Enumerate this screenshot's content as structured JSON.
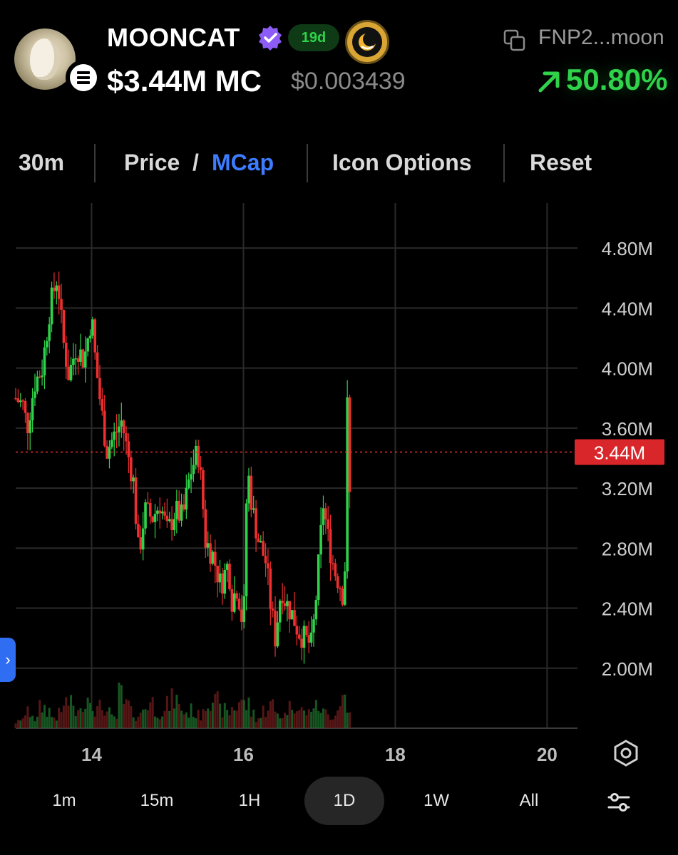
{
  "token": {
    "name": "MOONCAT",
    "age": "19d",
    "market_cap": "$3.44M MC",
    "price": "$0.003439",
    "address": "FNP2...moon",
    "change": "50.80%",
    "icons": {
      "verified": "verified-check-icon",
      "chain": "solana-icon",
      "badge": "moon-icon",
      "copy": "copy-icon",
      "change": "arrow-up-right-icon"
    }
  },
  "toolbar": {
    "interval": "30m",
    "price_label": "Price",
    "slash": "/",
    "mcap_label": "MCap",
    "icon_options": "Icon Options",
    "reset": "Reset"
  },
  "intervals": [
    {
      "label": "1m",
      "selected": false
    },
    {
      "label": "15m",
      "selected": false
    },
    {
      "label": "1H",
      "selected": false
    },
    {
      "label": "1D",
      "selected": true
    },
    {
      "label": "1W",
      "selected": false
    },
    {
      "label": "All",
      "selected": false
    }
  ],
  "chart_data": {
    "type": "candlestick",
    "x_ticks": [
      "14",
      "16",
      "18",
      "20"
    ],
    "y_ticks": [
      "2.00M",
      "2.40M",
      "2.80M",
      "3.20M",
      "3.60M",
      "4.00M",
      "4.40M",
      "4.80M"
    ],
    "current_label": "3.44M",
    "current_value": 3.44,
    "x_range": [
      13.0,
      20.4
    ],
    "y_range": [
      1.6,
      5.1
    ],
    "grid": true,
    "colors": {
      "up": "#2fd24a",
      "down": "#ef2f2f",
      "grid": "#2a2a2a",
      "price_line": "#ef2f2f"
    },
    "price_path": [
      [
        13.0,
        3.8
      ],
      [
        13.1,
        3.75
      ],
      [
        13.15,
        3.6
      ],
      [
        13.25,
        3.9
      ],
      [
        13.35,
        4.0
      ],
      [
        13.45,
        4.4
      ],
      [
        13.55,
        4.62
      ],
      [
        13.62,
        4.2
      ],
      [
        13.7,
        3.95
      ],
      [
        13.8,
        4.15
      ],
      [
        13.9,
        4.05
      ],
      [
        14.0,
        4.35
      ],
      [
        14.05,
        4.05
      ],
      [
        14.12,
        3.75
      ],
      [
        14.2,
        3.45
      ],
      [
        14.3,
        3.55
      ],
      [
        14.4,
        3.65
      ],
      [
        14.45,
        3.5
      ],
      [
        14.55,
        3.25
      ],
      [
        14.62,
        2.75
      ],
      [
        14.7,
        3.05
      ],
      [
        14.8,
        3.0
      ],
      [
        14.9,
        3.1
      ],
      [
        15.0,
        2.9
      ],
      [
        15.1,
        3.05
      ],
      [
        15.2,
        3.0
      ],
      [
        15.3,
        3.3
      ],
      [
        15.4,
        3.45
      ],
      [
        15.45,
        3.2
      ],
      [
        15.5,
        2.85
      ],
      [
        15.6,
        2.75
      ],
      [
        15.7,
        2.55
      ],
      [
        15.8,
        2.7
      ],
      [
        15.85,
        2.45
      ],
      [
        15.92,
        2.55
      ],
      [
        16.0,
        2.25
      ],
      [
        16.05,
        3.35
      ],
      [
        16.12,
        3.05
      ],
      [
        16.2,
        2.85
      ],
      [
        16.3,
        2.7
      ],
      [
        16.35,
        2.45
      ],
      [
        16.42,
        2.2
      ],
      [
        16.5,
        2.55
      ],
      [
        16.55,
        2.45
      ],
      [
        16.65,
        2.35
      ],
      [
        16.72,
        2.25
      ],
      [
        16.8,
        2.2
      ],
      [
        16.9,
        2.15
      ],
      [
        16.97,
        2.55
      ],
      [
        17.05,
        3.1
      ],
      [
        17.12,
        2.85
      ],
      [
        17.2,
        2.65
      ],
      [
        17.28,
        2.55
      ],
      [
        17.33,
        2.45
      ],
      [
        17.37,
        3.8
      ],
      [
        17.4,
        3.15
      ]
    ],
    "volume_level": [
      0.12,
      0.25,
      0.3,
      0.18,
      0.4,
      0.35,
      0.22,
      0.28,
      0.5,
      0.45,
      0.3,
      0.55,
      0.6,
      0.35,
      0.4,
      0.3,
      0.2,
      0.65,
      0.45,
      0.3,
      0.25,
      0.4,
      0.5,
      0.35,
      0.3,
      0.45,
      0.55,
      0.4,
      0.3,
      0.35,
      0.25,
      0.45,
      0.6,
      0.5,
      0.35,
      0.3,
      0.4,
      0.55,
      0.45,
      0.3,
      0.2,
      0.35,
      0.45,
      0.3,
      0.25,
      0.4,
      0.5,
      0.35,
      0.3,
      0.45,
      0.4,
      0.3,
      0.25,
      0.35,
      0.6,
      0.3
    ]
  }
}
